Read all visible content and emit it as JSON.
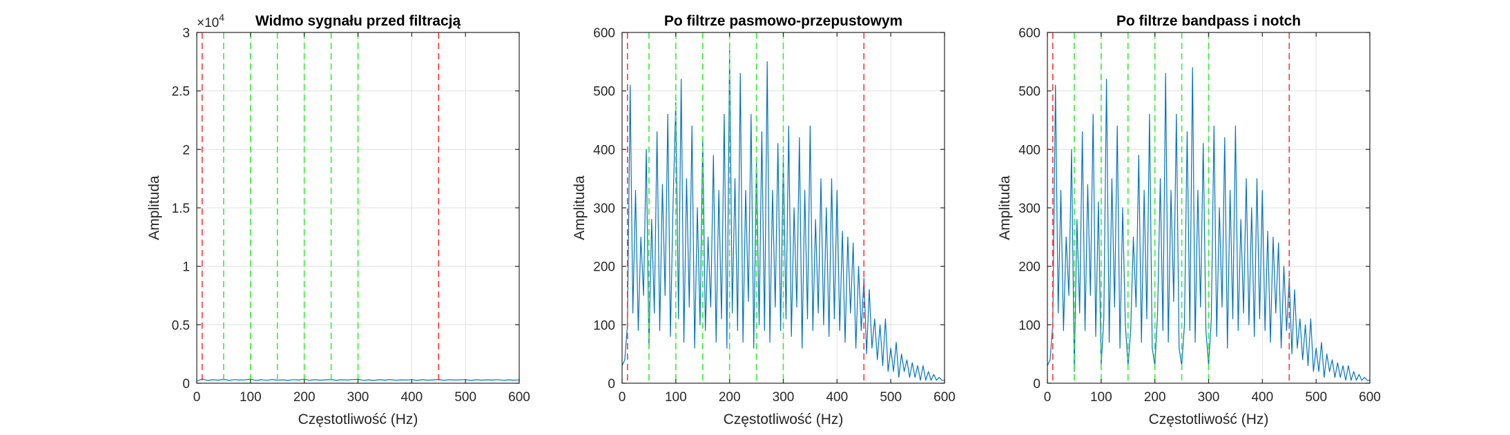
{
  "figure": {
    "colors": {
      "signal": "#0072bd",
      "red_marker": "#ff3333",
      "green_marker": "#33ee33",
      "grid": "#e0e0e0",
      "axis": "#262626"
    }
  },
  "chart_data": [
    {
      "type": "line",
      "title": "Widmo sygnału przed filtracją",
      "xlabel": "Częstotliwość (Hz)",
      "ylabel": "Amplituda",
      "xlim": [
        0,
        600
      ],
      "ylim": [
        0,
        30000
      ],
      "xticks": [
        0,
        100,
        200,
        300,
        400,
        500,
        600
      ],
      "xtick_labels": [
        "0",
        "100",
        "200",
        "300",
        "400",
        "500",
        "600"
      ],
      "yticks": [
        0,
        5000,
        10000,
        15000,
        20000,
        25000,
        30000
      ],
      "ytick_labels": [
        "0",
        "0.5",
        "1",
        "1.5",
        "2",
        "2.5",
        "3"
      ],
      "exponent_label": "×10",
      "exponent_power": "4",
      "grid": true,
      "red_lines": [
        10,
        450
      ],
      "green_lines": [
        50,
        100,
        150,
        200,
        250,
        300
      ],
      "series": [
        {
          "x": [
            0,
            10,
            20,
            30,
            40,
            50,
            60,
            70,
            80,
            90,
            100,
            110,
            120,
            130,
            140,
            150,
            160,
            170,
            180,
            190,
            200,
            210,
            220,
            230,
            240,
            250,
            260,
            270,
            280,
            290,
            300,
            310,
            320,
            330,
            340,
            350,
            360,
            370,
            380,
            390,
            400,
            410,
            420,
            430,
            440,
            450,
            460,
            470,
            480,
            490,
            500,
            510,
            520,
            530,
            540,
            550,
            560,
            570,
            580,
            590,
            600
          ],
          "y": [
            180,
            360,
            230,
            300,
            260,
            330,
            240,
            310,
            270,
            290,
            350,
            230,
            300,
            250,
            320,
            260,
            290,
            240,
            310,
            270,
            340,
            250,
            300,
            260,
            290,
            320,
            240,
            300,
            270,
            310,
            330,
            250,
            290,
            240,
            300,
            260,
            320,
            250,
            290,
            270,
            310,
            240,
            300,
            260,
            290,
            320,
            250,
            300,
            270,
            290,
            310,
            240,
            300,
            260,
            290,
            270,
            310,
            250,
            290,
            260,
            280
          ]
        }
      ]
    },
    {
      "type": "line",
      "title": "Po filtrze pasmowo-przepustowym",
      "xlabel": "Częstotliwość (Hz)",
      "ylabel": "Amplituda",
      "xlim": [
        0,
        600
      ],
      "ylim": [
        0,
        600
      ],
      "xticks": [
        0,
        100,
        200,
        300,
        400,
        500,
        600
      ],
      "xtick_labels": [
        "0",
        "100",
        "200",
        "300",
        "400",
        "500",
        "600"
      ],
      "yticks": [
        0,
        100,
        200,
        300,
        400,
        500,
        600
      ],
      "ytick_labels": [
        "0",
        "100",
        "200",
        "300",
        "400",
        "500",
        "600"
      ],
      "grid": true,
      "red_lines": [
        10,
        450
      ],
      "green_lines": [
        50,
        100,
        150,
        200,
        250,
        300
      ],
      "series": [
        {
          "x": [
            0,
            5,
            10,
            15,
            20,
            25,
            30,
            35,
            40,
            45,
            50,
            55,
            60,
            65,
            70,
            75,
            80,
            85,
            90,
            95,
            100,
            105,
            110,
            115,
            120,
            125,
            130,
            135,
            140,
            145,
            150,
            155,
            160,
            165,
            170,
            175,
            180,
            185,
            190,
            195,
            200,
            205,
            210,
            215,
            220,
            225,
            230,
            235,
            240,
            245,
            250,
            255,
            260,
            265,
            270,
            275,
            280,
            285,
            290,
            295,
            300,
            305,
            310,
            315,
            320,
            325,
            330,
            335,
            340,
            345,
            350,
            355,
            360,
            365,
            370,
            375,
            380,
            385,
            390,
            395,
            400,
            405,
            410,
            415,
            420,
            425,
            430,
            435,
            440,
            445,
            450,
            455,
            460,
            465,
            470,
            475,
            480,
            485,
            490,
            495,
            500,
            505,
            510,
            515,
            520,
            525,
            530,
            535,
            540,
            545,
            550,
            555,
            560,
            565,
            570,
            575,
            580,
            585,
            590,
            595,
            600
          ],
          "y": [
            30,
            40,
            100,
            510,
            120,
            330,
            90,
            250,
            150,
            400,
            60,
            280,
            120,
            430,
            90,
            340,
            150,
            460,
            80,
            310,
            480,
            110,
            520,
            70,
            350,
            130,
            440,
            60,
            300,
            100,
            420,
            90,
            250,
            130,
            390,
            70,
            330,
            110,
            460,
            60,
            570,
            120,
            350,
            90,
            530,
            70,
            330,
            140,
            460,
            60,
            380,
            100,
            430,
            90,
            550,
            70,
            330,
            130,
            410,
            90,
            390,
            110,
            440,
            80,
            300,
            130,
            420,
            60,
            330,
            110,
            440,
            90,
            280,
            120,
            350,
            100,
            300,
            80,
            350,
            110,
            330,
            90,
            260,
            70,
            250,
            120,
            240,
            60,
            200,
            90,
            180,
            50,
            160,
            60,
            110,
            40,
            100,
            30,
            110,
            20,
            60,
            20,
            70,
            10,
            50,
            20,
            40,
            10,
            35,
            10,
            30,
            5,
            30,
            5,
            20,
            5,
            15,
            5,
            10,
            5,
            5
          ]
        }
      ]
    },
    {
      "type": "line",
      "title": "Po filtrze bandpass i notch",
      "xlabel": "Częstotliwość (Hz)",
      "ylabel": "Amplituda",
      "xlim": [
        0,
        600
      ],
      "ylim": [
        0,
        600
      ],
      "xticks": [
        0,
        100,
        200,
        300,
        400,
        500,
        600
      ],
      "xtick_labels": [
        "0",
        "100",
        "200",
        "300",
        "400",
        "500",
        "600"
      ],
      "yticks": [
        0,
        100,
        200,
        300,
        400,
        500,
        600
      ],
      "ytick_labels": [
        "0",
        "100",
        "200",
        "300",
        "400",
        "500",
        "600"
      ],
      "grid": true,
      "red_lines": [
        10,
        450
      ],
      "green_lines": [
        50,
        100,
        150,
        200,
        250,
        300
      ],
      "series": [
        {
          "x": [
            0,
            5,
            10,
            15,
            20,
            25,
            30,
            35,
            40,
            45,
            50,
            55,
            60,
            65,
            70,
            75,
            80,
            85,
            90,
            95,
            100,
            105,
            110,
            115,
            120,
            125,
            130,
            135,
            140,
            145,
            150,
            155,
            160,
            165,
            170,
            175,
            180,
            185,
            190,
            195,
            200,
            205,
            210,
            215,
            220,
            225,
            230,
            235,
            240,
            245,
            250,
            255,
            260,
            265,
            270,
            275,
            280,
            285,
            290,
            295,
            300,
            305,
            310,
            315,
            320,
            325,
            330,
            335,
            340,
            345,
            350,
            355,
            360,
            365,
            370,
            375,
            380,
            385,
            390,
            395,
            400,
            405,
            410,
            415,
            420,
            425,
            430,
            435,
            440,
            445,
            450,
            455,
            460,
            465,
            470,
            475,
            480,
            485,
            490,
            495,
            500,
            505,
            510,
            515,
            520,
            525,
            530,
            535,
            540,
            545,
            550,
            555,
            560,
            565,
            570,
            575,
            580,
            585,
            590,
            595,
            600
          ],
          "y": [
            30,
            40,
            100,
            510,
            120,
            330,
            90,
            250,
            150,
            400,
            20,
            280,
            120,
            430,
            90,
            340,
            150,
            460,
            80,
            310,
            30,
            110,
            520,
            70,
            350,
            130,
            440,
            60,
            300,
            100,
            30,
            90,
            250,
            130,
            390,
            70,
            330,
            110,
            460,
            60,
            30,
            120,
            350,
            90,
            530,
            70,
            330,
            140,
            460,
            60,
            30,
            100,
            430,
            90,
            540,
            70,
            330,
            130,
            410,
            90,
            30,
            110,
            440,
            80,
            300,
            130,
            420,
            60,
            330,
            110,
            440,
            90,
            280,
            120,
            350,
            100,
            300,
            80,
            350,
            110,
            330,
            90,
            260,
            70,
            250,
            120,
            240,
            60,
            200,
            90,
            180,
            50,
            160,
            60,
            110,
            40,
            100,
            30,
            110,
            20,
            60,
            20,
            70,
            10,
            50,
            20,
            40,
            10,
            35,
            10,
            30,
            5,
            30,
            5,
            20,
            5,
            15,
            5,
            10,
            5,
            5
          ]
        }
      ]
    }
  ]
}
